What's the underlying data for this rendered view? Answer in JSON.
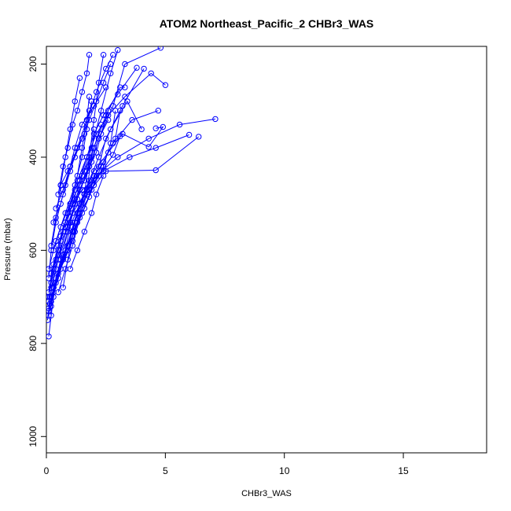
{
  "chart_data": {
    "type": "line",
    "title": "ATOM2 Northeast_Pacific_2 CHBr3_WAS",
    "xlabel": "CHBr3_WAS",
    "ylabel": "Pressure (mbar)",
    "xlim": [
      0,
      18.5
    ],
    "ylim": [
      1035,
      162
    ],
    "y_reversed": true,
    "x_ticks": [
      0,
      5,
      10,
      15
    ],
    "x_tick_labels": [
      "0",
      "5",
      "10",
      "15"
    ],
    "y_ticks": [
      200,
      400,
      600,
      800,
      1000
    ],
    "y_tick_labels": [
      "200",
      "400",
      "600",
      "800",
      "1000"
    ],
    "grid": false,
    "legend": "none",
    "line_color": "#0000ff",
    "marker": "open-circle",
    "series": [
      {
        "x": [
          0.1,
          0.2,
          0.3,
          0.5,
          0.9,
          1.3,
          1.6,
          1.8,
          2.0,
          2.2,
          2.4
        ],
        "y": [
          785,
          740,
          700,
          650,
          600,
          540,
          480,
          400,
          320,
          240,
          180
        ]
      },
      {
        "x": [
          0.05,
          0.15,
          0.4,
          0.8,
          1.2,
          1.5,
          1.9,
          2.3,
          2.7,
          3.0
        ],
        "y": [
          750,
          700,
          640,
          560,
          500,
          440,
          380,
          300,
          220,
          170
        ]
      },
      {
        "x": [
          0.1,
          0.3,
          0.6,
          1.0,
          1.4,
          1.8,
          2.2,
          2.8,
          3.3,
          4.8
        ],
        "y": [
          730,
          680,
          620,
          540,
          470,
          420,
          360,
          290,
          200,
          165
        ]
      },
      {
        "x": [
          0.2,
          0.4,
          0.8,
          1.1,
          1.6,
          2.1,
          3.0,
          4.3,
          5.6,
          7.1
        ],
        "y": [
          720,
          660,
          600,
          520,
          480,
          440,
          400,
          360,
          330,
          318
        ]
      },
      {
        "x": [
          0.1,
          0.2,
          0.5,
          0.9,
          1.5,
          2.4,
          3.5,
          4.6,
          6.0
        ],
        "y": [
          710,
          650,
          590,
          520,
          470,
          430,
          400,
          380,
          352
        ]
      },
      {
        "x": [
          0.15,
          0.3,
          0.7,
          1.2,
          1.7,
          2.5,
          4.6,
          6.4
        ],
        "y": [
          715,
          680,
          610,
          560,
          480,
          430,
          428,
          356
        ]
      },
      {
        "x": [
          0.1,
          0.3,
          0.6,
          1.0,
          1.3,
          1.7,
          2.1,
          2.6,
          3.3,
          4.4,
          5.0
        ],
        "y": [
          690,
          630,
          570,
          505,
          450,
          400,
          350,
          310,
          270,
          220,
          245
        ]
      },
      {
        "x": [
          0.2,
          0.5,
          0.9,
          1.3,
          1.8,
          2.2,
          2.5,
          3.2,
          4.1
        ],
        "y": [
          710,
          660,
          590,
          520,
          470,
          420,
          360,
          290,
          210
        ]
      },
      {
        "x": [
          0.1,
          0.3,
          0.7,
          1.1,
          1.4,
          1.8,
          2.2,
          2.7,
          3.4,
          4.0
        ],
        "y": [
          740,
          690,
          620,
          550,
          500,
          450,
          400,
          340,
          280,
          340
        ]
      },
      {
        "x": [
          0.2,
          0.6,
          1.1,
          1.5,
          1.9,
          2.3,
          2.8,
          3.6,
          4.7
        ],
        "y": [
          700,
          640,
          580,
          520,
          470,
          420,
          370,
          320,
          300
        ]
      },
      {
        "x": [
          0.1,
          0.4,
          0.8,
          1.2,
          1.6,
          2.0,
          2.6,
          3.2,
          4.3,
          4.9,
          4.6
        ],
        "y": [
          725,
          670,
          600,
          540,
          480,
          430,
          390,
          350,
          378,
          335,
          338
        ]
      },
      {
        "x": [
          0.2,
          0.5,
          0.9,
          1.4,
          1.9,
          2.4,
          2.9,
          3.1
        ],
        "y": [
          680,
          620,
          560,
          500,
          450,
          410,
          360,
          300
        ]
      },
      {
        "x": [
          0.1,
          0.3,
          0.6,
          0.9,
          1.2,
          1.6,
          2.0,
          2.5,
          3.1,
          3.3
        ],
        "y": [
          700,
          640,
          580,
          520,
          470,
          430,
          380,
          310,
          250,
          250
        ]
      },
      {
        "x": [
          0.3,
          0.7,
          1.1,
          1.6,
          2.0,
          2.4,
          2.7,
          2.9
        ],
        "y": [
          680,
          610,
          560,
          510,
          460,
          420,
          370,
          300
        ]
      },
      {
        "x": [
          0.1,
          0.2,
          0.4,
          0.7,
          1.0,
          1.3,
          1.7,
          2.1,
          2.5,
          2.8
        ],
        "y": [
          660,
          600,
          540,
          480,
          430,
          380,
          320,
          260,
          210,
          180
        ]
      },
      {
        "x": [
          0.2,
          0.5,
          0.9,
          1.3,
          1.7,
          2.0,
          2.3
        ],
        "y": [
          670,
          610,
          550,
          490,
          430,
          380,
          330
        ]
      },
      {
        "x": [
          0.5,
          0.8,
          1.1,
          1.4,
          1.7,
          1.9,
          2.0
        ],
        "y": [
          690,
          640,
          590,
          530,
          470,
          400,
          340
        ]
      },
      {
        "x": [
          0.4,
          0.7,
          1.0,
          1.3,
          1.5,
          1.7,
          1.8
        ],
        "y": [
          620,
          560,
          500,
          440,
          380,
          320,
          270
        ]
      },
      {
        "x": [
          0.2,
          0.5,
          0.8,
          1.2,
          1.6,
          1.9,
          2.2,
          2.6
        ],
        "y": [
          650,
          600,
          540,
          490,
          450,
          410,
          360,
          320
        ]
      },
      {
        "x": [
          0.1,
          0.4,
          0.8,
          1.2,
          1.5,
          1.7,
          1.9
        ],
        "y": [
          640,
          580,
          520,
          460,
          400,
          340,
          280
        ]
      },
      {
        "x": [
          0.3,
          0.6,
          1.0,
          1.4,
          1.8,
          2.1,
          2.3,
          2.6
        ],
        "y": [
          600,
          550,
          500,
          460,
          420,
          390,
          350,
          300
        ]
      },
      {
        "x": [
          0.5,
          0.7,
          0.9,
          1.1,
          1.3,
          1.5,
          1.7,
          1.8
        ],
        "y": [
          480,
          420,
          380,
          330,
          300,
          260,
          220,
          180
        ]
      },
      {
        "x": [
          0.2,
          0.4,
          0.6,
          0.8,
          1.0,
          1.2,
          1.4
        ],
        "y": [
          590,
          530,
          460,
          400,
          340,
          280,
          230
        ]
      },
      {
        "x": [
          0.6,
          0.9,
          1.2,
          1.5,
          1.8,
          2.1,
          2.4,
          2.7
        ],
        "y": [
          460,
          430,
          400,
          360,
          320,
          280,
          240,
          200
        ]
      },
      {
        "x": [
          0.8,
          1.1,
          1.4,
          1.7,
          2.0,
          2.4,
          3.0,
          3.8
        ],
        "y": [
          550,
          500,
          450,
          400,
          350,
          310,
          265,
          208
        ]
      },
      {
        "x": [
          0.9,
          1.1,
          1.3,
          1.6,
          2.2,
          2.8,
          3.1
        ],
        "y": [
          590,
          560,
          520,
          480,
          440,
          395,
          355
        ]
      },
      {
        "x": [
          1.0,
          1.3,
          1.6,
          1.9,
          2.1,
          2.4
        ],
        "y": [
          640,
          600,
          560,
          520,
          480,
          440
        ]
      },
      {
        "x": [
          0.7,
          0.9,
          1.1,
          1.4,
          1.8,
          2.0
        ],
        "y": [
          680,
          620,
          570,
          520,
          485,
          440
        ]
      },
      {
        "x": [
          0.3,
          0.6,
          0.8,
          1.0,
          1.3,
          1.6,
          1.8
        ],
        "y": [
          540,
          500,
          460,
          420,
          380,
          350,
          300
        ]
      },
      {
        "x": [
          0.4,
          0.7,
          1.0,
          1.2,
          1.5,
          2.0,
          2.5
        ],
        "y": [
          510,
          470,
          420,
          380,
          330,
          290,
          250
        ]
      }
    ]
  }
}
